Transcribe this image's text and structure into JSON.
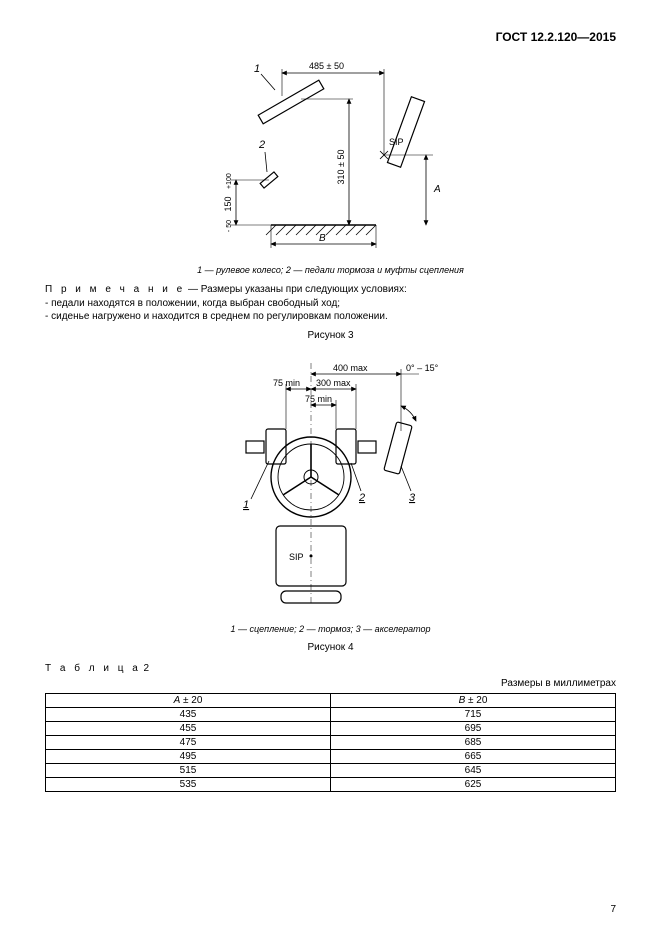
{
  "header": {
    "doc_id": "ГОСТ 12.2.120—2015"
  },
  "fig3": {
    "dims": {
      "top": "485 ± 50",
      "left_vert": "150",
      "left_vert_tol_top": "+100",
      "left_vert_tol_bot": "- 50",
      "right_vert": "310 ± 50",
      "sip": "SIP",
      "A": "A",
      "B": "B",
      "callout1": "1",
      "callout2": "2"
    },
    "legend": "1 — рулевое колесо; 2 — педали тормоза и муфты сцепления"
  },
  "note": {
    "lead": "П р и м е ч а н и е",
    "text_main": " — Размеры указаны при следующих условиях:",
    "line1": "- педали находятся в положении, когда выбран свободный ход;",
    "line2": "- сиденье нагружено и находится в среднем по регулировкам положении."
  },
  "fig3_label": "Рисунок 3",
  "fig4": {
    "dims": {
      "d400": "400 max",
      "d300": "300 max",
      "d75min": "75 min",
      "d75minL": "75 min",
      "angle": "0° – 15°",
      "sip": "SIP",
      "c1": "1",
      "c2": "2",
      "c3": "3"
    },
    "legend": "1 — сцепление; 2 — тормоз; 3 — акселератор"
  },
  "fig4_label": "Рисунок 4",
  "table": {
    "title_lead": "Т а б л и ц а",
    "title_num": " 2",
    "units": "Размеры в миллиметрах",
    "colA_base": "A",
    "colA_tol": " ± 20",
    "colB_base": "B",
    "colB_tol": " ± 20",
    "rows": [
      {
        "a": "435",
        "b": "715"
      },
      {
        "a": "455",
        "b": "695"
      },
      {
        "a": "475",
        "b": "685"
      },
      {
        "a": "495",
        "b": "665"
      },
      {
        "a": "515",
        "b": "645"
      },
      {
        "a": "535",
        "b": "625"
      }
    ]
  },
  "pagenum": "7",
  "style": {
    "stroke": "#000000",
    "thin": 1,
    "arrow": 0.8
  }
}
